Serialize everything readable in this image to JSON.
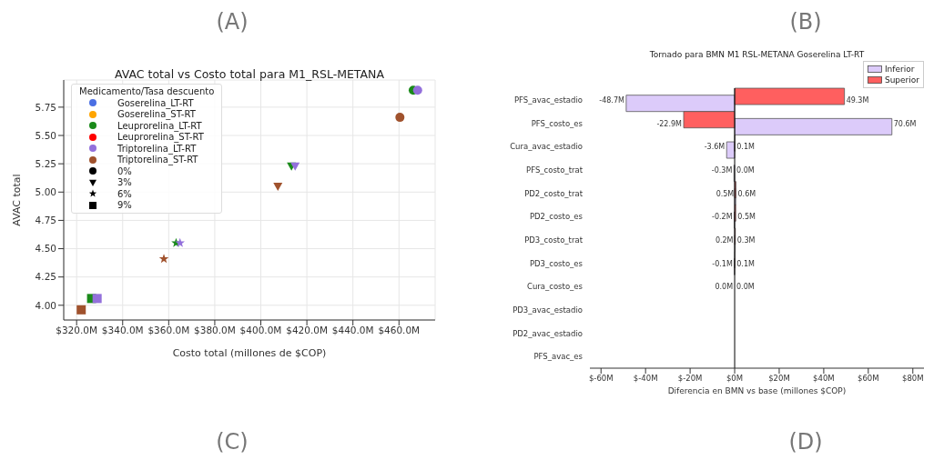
{
  "chart_data": [
    {
      "type": "scatter",
      "title": "AVAC total vs Costo total para M1_RSL-METANA",
      "xlabel": "Costo total (millones de $COP)",
      "ylabel": "AVAC total",
      "legend_title": "Medicamento/Tasa descuento",
      "series": [
        {
          "name": "Goserelina_LT-RT",
          "color": "#4a6fe3",
          "values": [
            null
          ],
          "marker": "circle"
        },
        {
          "name": "Goserelina_ST-RT",
          "color": "#ffa500",
          "values": [
            null
          ],
          "marker": "circle"
        },
        {
          "name": "Leuprorelina_LT-RT",
          "color": "#1a8a1a",
          "x": [
            466.2,
            413.3,
            363.2,
            326.5
          ],
          "values": [
            5.9,
            5.23,
            4.55,
            4.06
          ],
          "marker": [
            "circle",
            "triangle",
            "star",
            "square"
          ]
        },
        {
          "name": "Leuprorelina_ST-RT",
          "color": "#ff0000",
          "values": [
            null
          ],
          "marker": "circle"
        },
        {
          "name": "Triptorelina_LT-RT",
          "color": "#9370db",
          "x": [
            468.1,
            414.9,
            364.9,
            328.9
          ],
          "values": [
            5.9,
            5.23,
            4.55,
            4.06
          ],
          "marker": [
            "circle",
            "triangle",
            "star",
            "square"
          ]
        },
        {
          "name": "Triptorelina_ST-RT",
          "color": "#a0522d",
          "x": [
            460.4,
            407.4,
            357.9,
            322.0
          ],
          "values": [
            5.66,
            5.05,
            4.41,
            3.96
          ],
          "marker": [
            "circle",
            "triangle",
            "star",
            "square"
          ]
        },
        {
          "name": "0%",
          "color": "#000000",
          "values": [
            null
          ],
          "marker": "circle"
        },
        {
          "name": "3%",
          "color": "#000000",
          "values": [
            null
          ],
          "marker": "triangle"
        },
        {
          "name": "6%",
          "color": "#000000",
          "values": [
            null
          ],
          "marker": "star"
        },
        {
          "name": "9%",
          "color": "#000000",
          "values": [
            null
          ],
          "marker": "square"
        }
      ],
      "xlim": [
        314.4,
        475.7
      ],
      "xticks": [
        {
          "value": 320,
          "label": "$320.0M"
        },
        {
          "value": 340,
          "label": "$340.0M"
        },
        {
          "value": 360,
          "label": "$360.0M"
        },
        {
          "value": 380,
          "label": "$380.0M"
        },
        {
          "value": 400,
          "label": "$400.0M"
        },
        {
          "value": 420,
          "label": "$420.0M"
        },
        {
          "value": 440,
          "label": "$440.0M"
        },
        {
          "value": 460,
          "label": "$460.0M"
        }
      ],
      "ylim": [
        3.87,
        5.99
      ],
      "yticks": [
        {
          "value": 4,
          "label": "4.00"
        },
        4.25,
        {
          "value": 4.5,
          "label": "4.50"
        },
        4.75,
        {
          "value": 5,
          "label": "5.00"
        },
        5.25,
        {
          "value": 5.5,
          "label": "5.50"
        },
        5.75
      ],
      "grid": true,
      "legend": "top left",
      "annotations": [
        "(A)",
        "(C)"
      ]
    },
    {
      "type": "bar",
      "orientation": "horizontal",
      "title": "Tornado para BMN M1 RSL-METANA Goserelina LT-RT",
      "xlabel": "Diferencia en BMN vs base (millones $COP)",
      "categories": [
        "PFS_avac_estadio",
        "PFS_costo_es",
        "Cura_avac_estadio",
        "PFS_costo_trat",
        "PD2_costo_trat",
        "PD2_costo_es",
        "PD3_costo_trat",
        "PD3_costo_es",
        "Cura_costo_es",
        "PD3_avac_estadio",
        "PD2_avac_estadio",
        "PFS_avac_es"
      ],
      "series": [
        {
          "name": "Inferior",
          "color": "#dccbfa",
          "values": [
            -48.7,
            70.6,
            -3.6,
            -0.3,
            0.5,
            -0.2,
            0.2,
            -0.1,
            0.0,
            null,
            null,
            null
          ],
          "value_labels": [
            "-48.7M",
            "70.6M",
            "-3.6M",
            "-0.3M",
            "0.5M",
            "-0.2M",
            "0.2M",
            "-0.1M",
            "0.0M",
            null,
            null,
            null
          ]
        },
        {
          "name": "Superior",
          "color": "#ff5f5f",
          "values": [
            49.3,
            -22.9,
            0.1,
            0.0,
            0.6,
            0.5,
            0.3,
            0.1,
            0.0,
            null,
            null,
            null
          ],
          "value_labels": [
            "49.3M",
            "-22.9M",
            "0.1M",
            "0.0M",
            "0.6M",
            "0.5M",
            "0.3M",
            "0.1M",
            "0.0M",
            null,
            null,
            null
          ]
        }
      ],
      "xlim": [
        -65,
        85
      ],
      "xticks": [
        {
          "value": -60,
          "label": "$-60M"
        },
        {
          "value": -40,
          "label": "$-40M"
        },
        {
          "value": -20,
          "label": "$-20M"
        },
        {
          "value": 0,
          "label": "$0M"
        },
        {
          "value": 20,
          "label": "$20M"
        },
        {
          "value": 40,
          "label": "$40M"
        },
        {
          "value": 60,
          "label": "$60M"
        },
        {
          "value": 80,
          "label": "$80M"
        }
      ],
      "ref_lines": [
        {
          "axis": "x",
          "value": 0,
          "color": "#000000"
        }
      ],
      "legend": "top right",
      "annotations": [
        "(B)",
        "(D)"
      ]
    }
  ]
}
